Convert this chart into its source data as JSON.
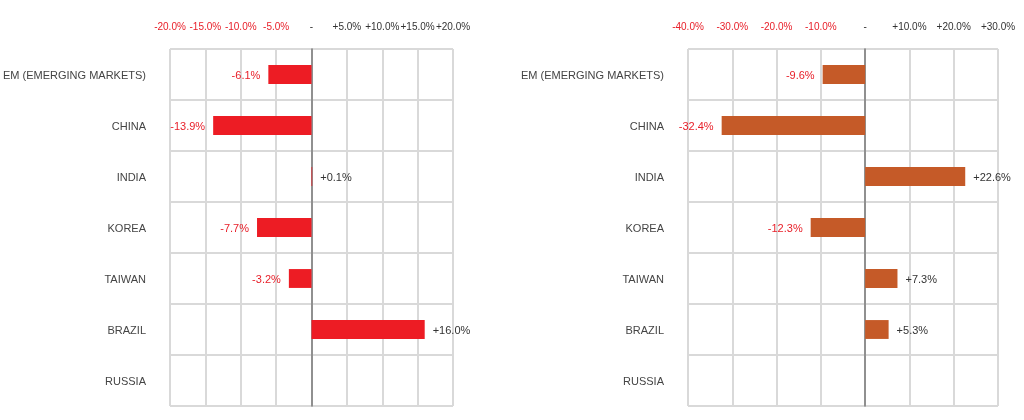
{
  "chart_data": [
    {
      "type": "bar",
      "orientation": "horizontal",
      "categories": [
        "EM (EMERGING MARKETS)",
        "CHINA",
        "INDIA",
        "KOREA",
        "TAIWAN",
        "BRAZIL",
        "RUSSIA"
      ],
      "series": [
        {
          "color": "#ed1c24",
          "values": [
            -6.1,
            -13.9,
            0.1,
            -7.7,
            -3.2,
            16.0,
            null
          ],
          "value_labels": [
            "-6.1%",
            "-13.9%",
            "+0.1%",
            "-7.7%",
            "-3.2%",
            "+16.0%",
            null
          ]
        }
      ],
      "xlim": [
        -20,
        20
      ],
      "xticks": [
        {
          "value": -20,
          "label": "-20.0%"
        },
        {
          "value": -15,
          "label": "-15.0%"
        },
        {
          "value": -10,
          "label": "-10.0%"
        },
        {
          "value": -5,
          "label": "-5.0%"
        },
        {
          "value": 0,
          "label": "-"
        },
        {
          "value": 5,
          "label": "+5.0%"
        },
        {
          "value": 10,
          "label": "+10.0%"
        },
        {
          "value": 15,
          "label": "+15.0%"
        },
        {
          "value": 20,
          "label": "+20.0%"
        }
      ],
      "grid": true
    },
    {
      "type": "bar",
      "orientation": "horizontal",
      "categories": [
        "EM (EMERGING MARKETS)",
        "CHINA",
        "INDIA",
        "KOREA",
        "TAIWAN",
        "BRAZIL",
        "RUSSIA"
      ],
      "series": [
        {
          "color": "#c55a28",
          "values": [
            -9.6,
            -32.4,
            22.6,
            -12.3,
            7.3,
            5.3,
            null
          ],
          "value_labels": [
            "-9.6%",
            "-32.4%",
            "+22.6%",
            "-12.3%",
            "+7.3%",
            "+5.3%",
            null
          ]
        }
      ],
      "xlim": [
        -40,
        30
      ],
      "xticks": [
        {
          "value": -40,
          "label": "-40.0%"
        },
        {
          "value": -30,
          "label": "-30.0%"
        },
        {
          "value": -20,
          "label": "-20.0%"
        },
        {
          "value": -10,
          "label": "-10.0%"
        },
        {
          "value": 0,
          "label": "-"
        },
        {
          "value": 10,
          "label": "+10.0%"
        },
        {
          "value": 20,
          "label": "+20.0%"
        },
        {
          "value": 30,
          "label": "+30.0%"
        }
      ],
      "grid": true
    }
  ]
}
